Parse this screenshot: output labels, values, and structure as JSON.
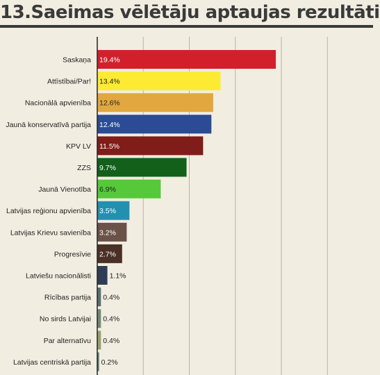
{
  "chart_data": {
    "type": "bar",
    "orientation": "horizontal",
    "title": "13.Saeimas vēlētāju aptaujas rezultāti",
    "categories": [
      "Saskaņa",
      "Attīstībai/Par!",
      "Nacionālā apvienība",
      "Jaunā konservatīvā partija",
      "KPV LV",
      "ZZS",
      "Jaunā Vienotība",
      "Latvijas reģionu apvienība",
      "Latvijas Krievu savienība",
      "Progresīvie",
      "Latviešu nacionālisti",
      "Rīcības partija",
      "No sirds Latvijai",
      "Par alternatīvu",
      "Latvijas centriskā partija"
    ],
    "values": [
      19.4,
      13.4,
      12.6,
      12.4,
      11.5,
      9.7,
      6.9,
      3.5,
      3.2,
      2.7,
      1.1,
      0.4,
      0.4,
      0.4,
      0.2
    ],
    "value_labels": [
      "19.4%",
      "13.4%",
      "12.6%",
      "12.4%",
      "11.5%",
      "9.7%",
      "6.9%",
      "3.5%",
      "3.2%",
      "2.7%",
      "1.1%",
      "0.4%",
      "0.4%",
      "0.4%",
      "0.2%"
    ],
    "colors": [
      "#d1202c",
      "#fdeb33",
      "#e2a83f",
      "#2b4c94",
      "#801d1a",
      "#12601a",
      "#55c93a",
      "#2291b0",
      "#6a5249",
      "#4a3026",
      "#2f3c55",
      "#5a6e6e",
      "#6e8a76",
      "#97a06a",
      "#5a7e74"
    ],
    "label_colors": [
      "#ffffff",
      "#222222",
      "#222222",
      "#ffffff",
      "#ffffff",
      "#ffffff",
      "#222222",
      "#ffffff",
      "#ffffff",
      "#ffffff",
      "#222222",
      "#222222",
      "#222222",
      "#222222",
      "#222222"
    ],
    "xlim": [
      0,
      25
    ],
    "grid": true,
    "grid_step": 5
  }
}
